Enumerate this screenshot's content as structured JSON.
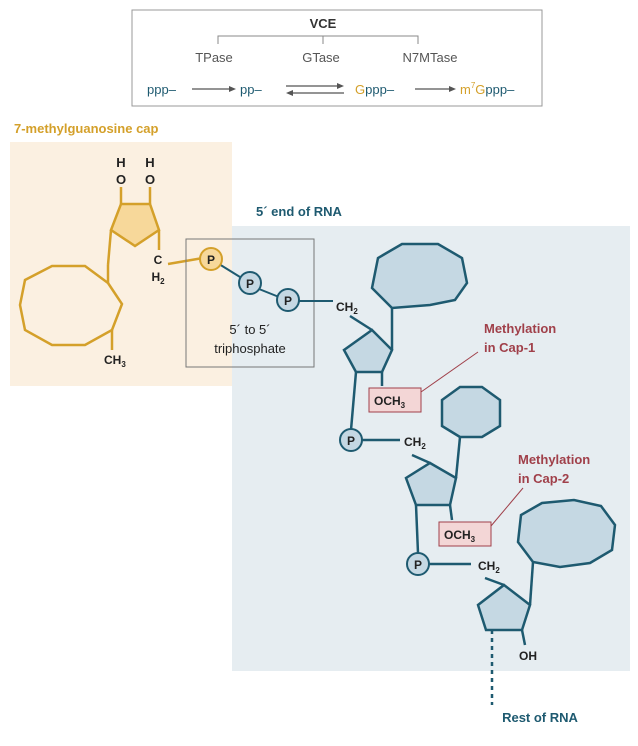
{
  "legend": {
    "title": "VCE",
    "enzymes": [
      "TPase",
      "GTase",
      "N7MTase"
    ],
    "flow": {
      "s1": "ppp–",
      "s2": "pp–",
      "s3_g": "G",
      "s3_rest": "ppp–",
      "s4_m": "m",
      "s4_sup": "7",
      "s4_g": "G",
      "s4_rest": "ppp–"
    }
  },
  "labels": {
    "cap_title": "7-methylguanosine cap",
    "rna_title": "5´ end of RNA",
    "triphosphate_line1": "5´ to 5´",
    "triphosphate_line2": "triphosphate",
    "meth1_line1": "Methylation",
    "meth1_line2": "in Cap-1",
    "meth2_line1": "Methylation",
    "meth2_line2": "in Cap-2",
    "rest": "Rest of RNA",
    "phosphate": "P",
    "och3": "OCH",
    "sub3": "3",
    "ch2": "CH",
    "sub2": "2",
    "ch3": "CH",
    "oh": "OH",
    "h": "H",
    "o": "O",
    "c": "C"
  },
  "colors": {
    "gold": "#d4a02a",
    "teal": "#1e5a70",
    "dark_red": "#a0404a",
    "panel_gold": "#fbf0e1",
    "panel_blue": "#e6edf1",
    "ring_fill_gold": "#f7d89a",
    "ring_fill_blue": "#c5d8e3",
    "och3_fill": "#f3d6d6"
  }
}
